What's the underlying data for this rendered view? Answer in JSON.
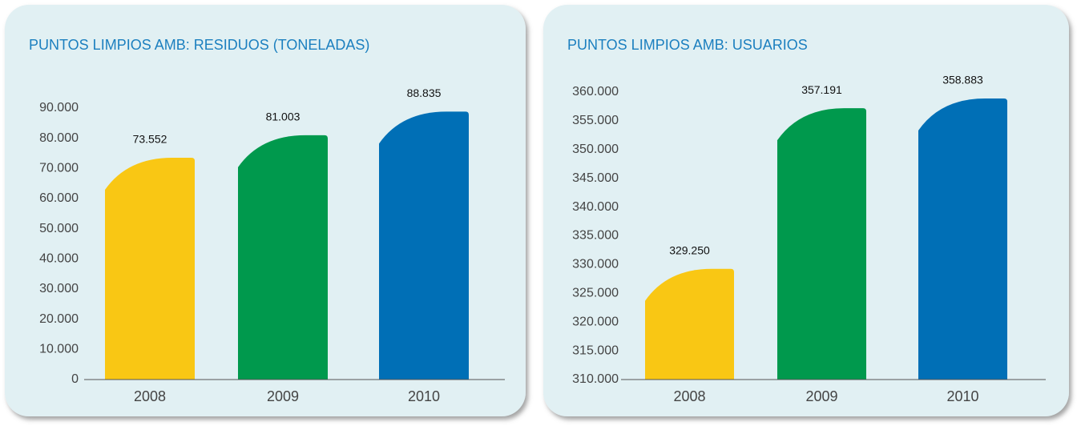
{
  "chart_data": [
    {
      "type": "bar",
      "title": "PUNTOS LIMPIOS AMB: RESIDUOS (TONELADAS)",
      "categories": [
        "2008",
        "2009",
        "2010"
      ],
      "values": [
        73552,
        81003,
        88835
      ],
      "value_labels": [
        "73.552",
        "81.003",
        "88.835"
      ],
      "colors": [
        "#f9c714",
        "#00994d",
        "#006fb6"
      ],
      "ylim": [
        0,
        90000
      ],
      "yticks": [
        0,
        {
          "value": 10000,
          "label": "10.000"
        },
        {
          "value": 20000,
          "label": "20.000"
        },
        {
          "value": 30000,
          "label": "30.000"
        },
        {
          "value": 40000,
          "label": "40.000"
        },
        {
          "value": 50000,
          "label": "50.000"
        },
        {
          "value": 60000,
          "label": "60.000"
        },
        {
          "value": 70000,
          "label": "70.000"
        },
        {
          "value": 80000,
          "label": "80.000"
        },
        {
          "value": 90000,
          "label": "90.000"
        }
      ]
    },
    {
      "type": "bar",
      "title": "PUNTOS LIMPIOS  AMB: USUARIOS",
      "categories": [
        "2008",
        "2009",
        "2010"
      ],
      "values": [
        329250,
        357191,
        358883
      ],
      "value_labels": [
        "329.250",
        "357.191",
        "358.883"
      ],
      "colors": [
        "#f9c714",
        "#00994d",
        "#006fb6"
      ],
      "ylim": [
        310000,
        360000
      ],
      "yticks": [
        {
          "value": 310000,
          "label": "310.000"
        },
        {
          "value": 315000,
          "label": "315.000"
        },
        {
          "value": 320000,
          "label": "320.000"
        },
        {
          "value": 325000,
          "label": "325.000"
        },
        {
          "value": 330000,
          "label": "330.000"
        },
        {
          "value": 335000,
          "label": "335.000"
        },
        {
          "value": 340000,
          "label": "340.000"
        },
        {
          "value": 345000,
          "label": "345.000"
        },
        {
          "value": 350000,
          "label": "350.000"
        },
        {
          "value": 355000,
          "label": "355.000"
        },
        {
          "value": 360000,
          "label": "360.000"
        }
      ]
    }
  ]
}
